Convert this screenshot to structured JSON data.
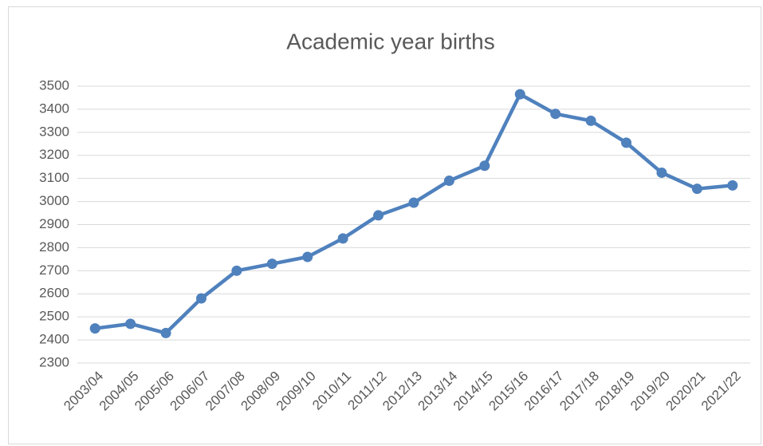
{
  "chart_data": {
    "type": "line",
    "title": "Academic year births",
    "categories": [
      "2003/04",
      "2004/05",
      "2005/06",
      "2006/07",
      "2007/08",
      "2008/09",
      "2009/10",
      "2010/11",
      "2011/12",
      "2012/13",
      "2013/14",
      "2014/15",
      "2015/16",
      "2016/17",
      "2017/18",
      "2018/19",
      "2019/20",
      "2020/21",
      "2021/22"
    ],
    "series": [
      {
        "name": "Births",
        "color": "#4f81bd",
        "values": [
          2450,
          2470,
          2430,
          2580,
          2700,
          2730,
          2760,
          2840,
          2940,
          2995,
          3090,
          3155,
          3465,
          3380,
          3350,
          3255,
          3125,
          3055,
          3070
        ]
      }
    ],
    "ylim": [
      2300,
      3500
    ],
    "yticks": [
      2300,
      2400,
      2500,
      2600,
      2700,
      2800,
      2900,
      3000,
      3100,
      3200,
      3300,
      3400,
      3500
    ],
    "grid": true,
    "legend": false
  }
}
